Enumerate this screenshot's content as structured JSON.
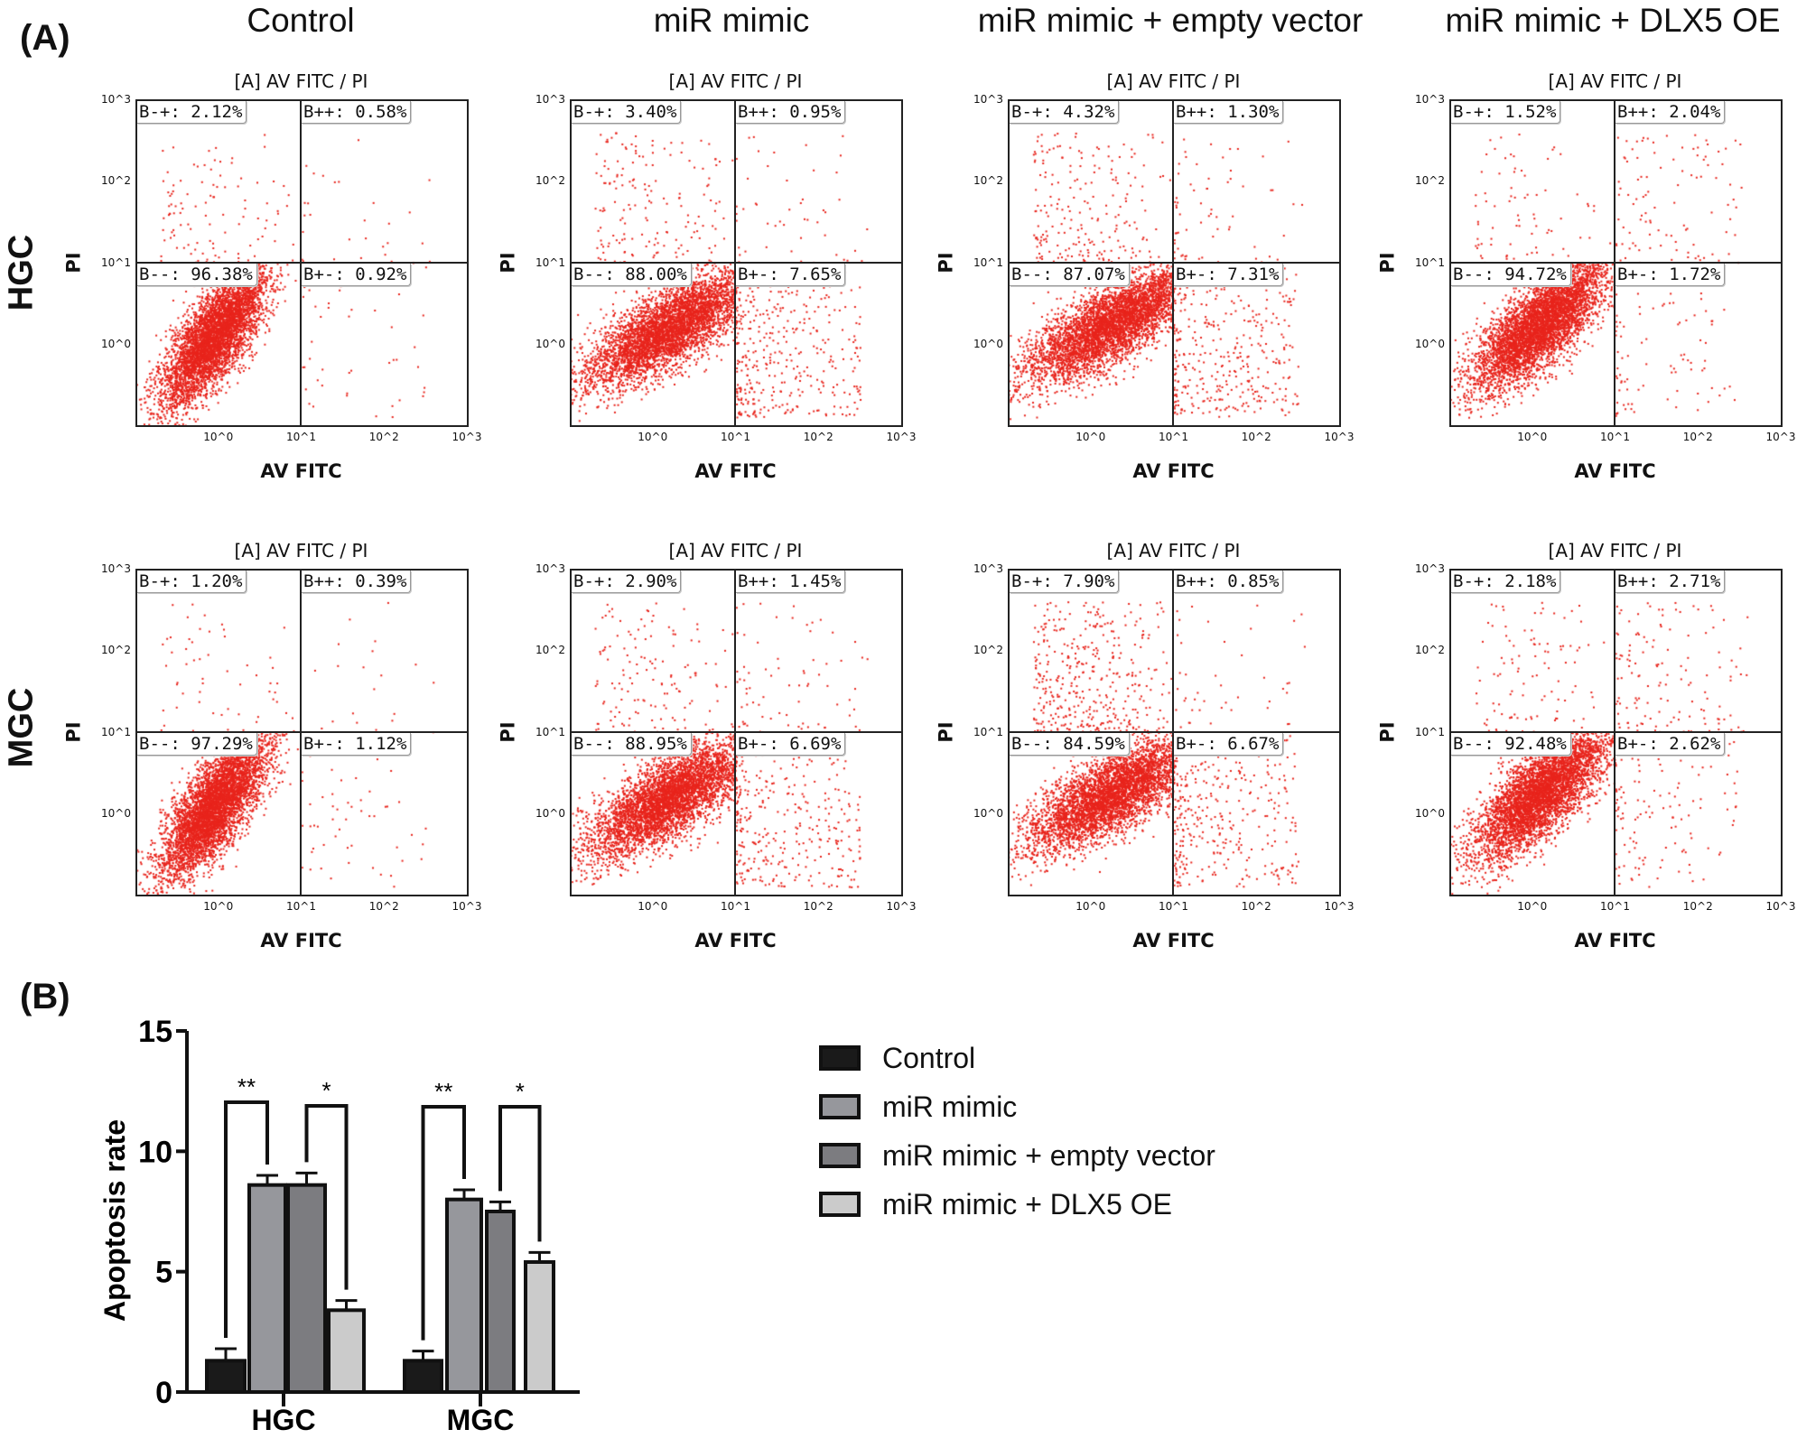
{
  "panel_labels": {
    "a": "(A)",
    "b": "(B)"
  },
  "columns": [
    "Control",
    "miR mimic",
    "miR mimic + empty vector",
    "miR mimic + DLX5 OE"
  ],
  "rows": [
    "HGC",
    "MGC"
  ],
  "flow_plot": {
    "title": "[A] AV FITC / PI",
    "xlabel": "AV FITC",
    "ylabel": "PI",
    "x_scale": "log",
    "y_scale": "log",
    "x_ticks": [
      "10^0",
      "10^1",
      "10^2",
      "10^3"
    ],
    "y_ticks": [
      "10^0",
      "10^1",
      "10^2",
      "10^3"
    ],
    "gate": {
      "x": 10,
      "y": 10
    },
    "dot_color": "#e8241c",
    "quadrant_names": {
      "ul": "B-+",
      "ur": "B++",
      "ll": "B--",
      "lr": "B+-"
    }
  },
  "flow_data": [
    [
      {
        "ul": "2.12%",
        "ur": "0.58%",
        "ll": "96.38%",
        "lr": "0.92%"
      },
      {
        "ul": "3.40%",
        "ur": "0.95%",
        "ll": "88.00%",
        "lr": "7.65%"
      },
      {
        "ul": "4.32%",
        "ur": "1.30%",
        "ll": "87.07%",
        "lr": "7.31%"
      },
      {
        "ul": "1.52%",
        "ur": "2.04%",
        "ll": "94.72%",
        "lr": "1.72%"
      }
    ],
    [
      {
        "ul": "1.20%",
        "ur": "0.39%",
        "ll": "97.29%",
        "lr": "1.12%"
      },
      {
        "ul": "2.90%",
        "ur": "1.45%",
        "ll": "88.95%",
        "lr": "6.69%"
      },
      {
        "ul": "7.90%",
        "ur": "0.85%",
        "ll": "84.59%",
        "lr": "6.67%"
      },
      {
        "ul": "2.18%",
        "ur": "2.71%",
        "ll": "92.48%",
        "lr": "2.62%"
      }
    ]
  ],
  "chart_data": {
    "type": "bar",
    "categories": [
      "HGC",
      "MGC"
    ],
    "ylabel": "Apoptosis rate",
    "xlabel": "",
    "ylim": [
      0,
      15
    ],
    "yticks": [
      "0",
      "5",
      "10",
      "15"
    ],
    "grid": false,
    "legend_position": "right",
    "series": [
      {
        "name": "Control",
        "color": "#1a1a1a",
        "values": [
          1.3,
          1.3
        ],
        "errors": [
          0.5,
          0.4
        ]
      },
      {
        "name": "miR mimic",
        "color": "#96979c",
        "values": [
          8.6,
          8.0
        ],
        "errors": [
          0.4,
          0.4
        ]
      },
      {
        "name": "miR mimic + empty vector",
        "color": "#7c7c80",
        "values": [
          8.6,
          7.5
        ],
        "errors": [
          0.5,
          0.4
        ]
      },
      {
        "name": "miR mimic + DLX5 OE",
        "color": "#cbcbcb",
        "values": [
          3.4,
          5.4
        ],
        "errors": [
          0.4,
          0.4
        ]
      }
    ],
    "significance": [
      {
        "category": "HGC",
        "from": 0,
        "to": 1,
        "label": "**"
      },
      {
        "category": "HGC",
        "from": 2,
        "to": 3,
        "label": "*"
      },
      {
        "category": "MGC",
        "from": 0,
        "to": 1,
        "label": "**"
      },
      {
        "category": "MGC",
        "from": 2,
        "to": 3,
        "label": "*"
      }
    ]
  }
}
